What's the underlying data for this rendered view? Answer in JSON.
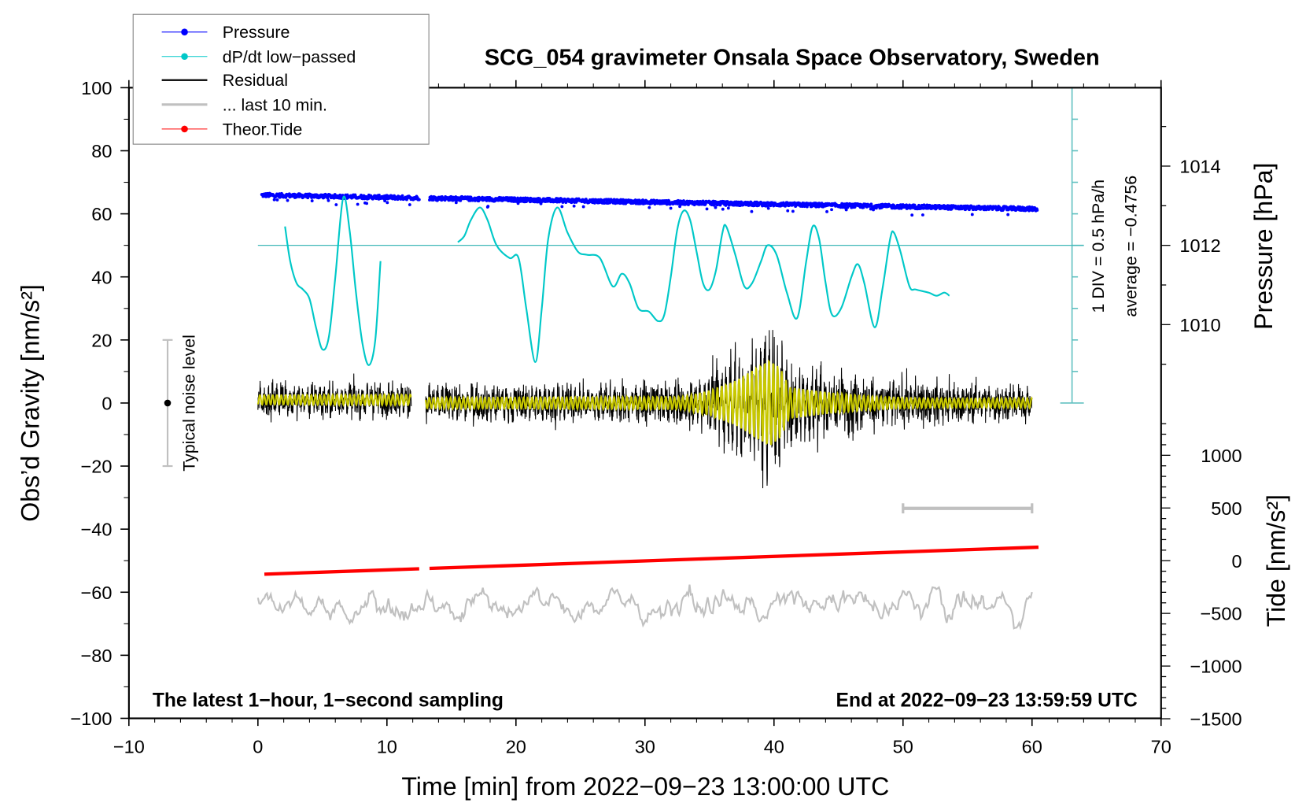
{
  "chart_data": {
    "type": "line",
    "title": "SCG_054 gravimeter Onsala Space Observatory, Sweden",
    "xlabel": "Time [min] from 2022−09−23 13:00:00 UTC",
    "ylabel": "Obs’d Gravity [nm/s²]",
    "y2label": "Pressure [hPa]",
    "y3label": "Tide [nm/s²]",
    "xlim": [
      -10,
      70
    ],
    "ylim": [
      -100,
      100
    ],
    "x_ticks": [
      -10,
      0,
      10,
      20,
      30,
      40,
      50,
      60,
      70
    ],
    "x_tick_labels": [
      "−10",
      "0",
      "10",
      "20",
      "30",
      "40",
      "50",
      "60",
      "70"
    ],
    "y_ticks": [
      -100,
      -80,
      -60,
      -40,
      -20,
      0,
      20,
      40,
      60,
      80,
      100
    ],
    "y_tick_labels": [
      "−100",
      "−80",
      "−60",
      "−40",
      "−20",
      "0",
      "20",
      "40",
      "60",
      "80",
      "100"
    ],
    "pressure_ticks": [
      1010,
      1012,
      1014
    ],
    "pressure_tick_labels": [
      "1010",
      "1012",
      "1014"
    ],
    "tide_ticks": [
      -1500,
      -1000,
      -500,
      0,
      500,
      1000
    ],
    "tide_tick_labels": [
      "−1500",
      "−1000",
      "−500",
      "0",
      "500",
      "1000"
    ],
    "grid": false,
    "legend_position": "top-left",
    "legend": [
      {
        "label": "Pressure",
        "color": "#0000ff",
        "marker": true
      },
      {
        "label": "dP/dt low−passed",
        "color": "#00c8c8",
        "marker": true
      },
      {
        "label": "Residual",
        "color": "#000000",
        "marker": false
      },
      {
        "label": "... last 10 min.",
        "color": "#c0c0c0",
        "marker": false
      },
      {
        "label": "Theor.Tide",
        "color": "#ff0000",
        "marker": true
      }
    ],
    "series": {
      "pressure": {
        "name": "Pressure",
        "unit": "hPa",
        "color": "#0000ff",
        "segments": [
          [
            0.3,
            12.5
          ],
          [
            13.3,
            60.4
          ]
        ],
        "start_value": 1013.27,
        "end_value": 1012.92
      },
      "dpdt": {
        "name": "dP/dt low-passed",
        "color": "#00c8c8",
        "zero_line_gravity": 50,
        "segments": [
          [
            [
              2.1,
              56
            ],
            [
              2.5,
              45
            ],
            [
              3,
              38
            ],
            [
              3.5,
              36
            ],
            [
              4,
              33
            ],
            [
              4.5,
              24
            ],
            [
              5,
              17
            ],
            [
              5.5,
              21
            ],
            [
              6,
              40
            ],
            [
              6.6,
              65
            ],
            [
              7.1,
              55
            ],
            [
              7.6,
              35
            ],
            [
              8.1,
              19
            ],
            [
              8.6,
              12
            ],
            [
              9.1,
              20
            ],
            [
              9.5,
              45
            ]
          ],
          [
            [
              15.5,
              51
            ],
            [
              16,
              53
            ],
            [
              16.5,
              58
            ],
            [
              17.2,
              62
            ],
            [
              17.8,
              58
            ],
            [
              18.5,
              50
            ],
            [
              19.5,
              46
            ],
            [
              20.2,
              46
            ],
            [
              20.8,
              30
            ],
            [
              21.5,
              13
            ],
            [
              22,
              30
            ],
            [
              22.5,
              52
            ],
            [
              23.2,
              62
            ],
            [
              24,
              54
            ],
            [
              24.8,
              48
            ],
            [
              25.5,
              47
            ],
            [
              26.5,
              46
            ],
            [
              27.5,
              37
            ],
            [
              28.2,
              41
            ],
            [
              28.8,
              38
            ],
            [
              29.5,
              30
            ],
            [
              30.3,
              29
            ],
            [
              31,
              26
            ],
            [
              31.5,
              28
            ],
            [
              32,
              40
            ],
            [
              32.5,
              55
            ],
            [
              33,
              61
            ],
            [
              33.5,
              58
            ],
            [
              34,
              48
            ],
            [
              34.5,
              38
            ],
            [
              35,
              36
            ],
            [
              35.5,
              42
            ],
            [
              36,
              54
            ],
            [
              36.3,
              56
            ],
            [
              37,
              47
            ],
            [
              37.7,
              37
            ],
            [
              38.3,
              38
            ],
            [
              39,
              45
            ],
            [
              39.5,
              50
            ],
            [
              40.2,
              47
            ],
            [
              41,
              35
            ],
            [
              41.8,
              27
            ],
            [
              42.5,
              45
            ],
            [
              43,
              56
            ],
            [
              43.5,
              52
            ],
            [
              44,
              38
            ],
            [
              44.5,
              28
            ],
            [
              45.2,
              30
            ],
            [
              46,
              40
            ],
            [
              46.5,
              44
            ],
            [
              47,
              38
            ],
            [
              47.8,
              24
            ],
            [
              48.4,
              36
            ],
            [
              49,
              52
            ],
            [
              49.3,
              54
            ],
            [
              49.8,
              48
            ],
            [
              50.5,
              37
            ],
            [
              51,
              36
            ],
            [
              52,
              35
            ],
            [
              52.6,
              34
            ],
            [
              53.2,
              35
            ],
            [
              53.6,
              34
            ]
          ]
        ]
      },
      "residual": {
        "name": "Residual",
        "color": "#000000",
        "filtered_color": "#c8c800",
        "segments": [
          [
            0,
            11.9
          ],
          [
            13,
            60
          ]
        ],
        "noise_amplitude_by_minute": [
          [
            0,
            3
          ],
          [
            10,
            3
          ],
          [
            20,
            3.2
          ],
          [
            30,
            3.3
          ],
          [
            34,
            4
          ],
          [
            36,
            6
          ],
          [
            38,
            8
          ],
          [
            39.5,
            11
          ],
          [
            40.5,
            10
          ],
          [
            41.5,
            7.5
          ],
          [
            43,
            6.5
          ],
          [
            45,
            5.5
          ],
          [
            47,
            5
          ],
          [
            50,
            4
          ],
          [
            55,
            3.5
          ],
          [
            60,
            3
          ]
        ],
        "filtered_amplitude_by_minute": [
          [
            0,
            1.5
          ],
          [
            20,
            1.8
          ],
          [
            33,
            2
          ],
          [
            35,
            4
          ],
          [
            37,
            7
          ],
          [
            38.5,
            11
          ],
          [
            39.7,
            14
          ],
          [
            40.5,
            11
          ],
          [
            41.2,
            5
          ],
          [
            43,
            4
          ],
          [
            45,
            3
          ],
          [
            48,
            2
          ],
          [
            52,
            1.5
          ],
          [
            60,
            1.5
          ]
        ]
      },
      "last10": {
        "name": "... last 10 min.",
        "color": "#c0c0c0",
        "span_minutes": [
          0,
          60
        ],
        "mean": -64,
        "range": [
          -73,
          -53
        ],
        "bar_range": [
          50,
          60
        ],
        "bar_level": -33.4
      },
      "tide": {
        "name": "Theor.Tide",
        "unit": "nm/s²",
        "color": "#ff0000",
        "segments": [
          [
            0.5,
            12.5
          ],
          [
            13.3,
            60.5
          ]
        ],
        "start_value": -128,
        "end_value": 128
      }
    },
    "noise_level": {
      "label": "Typical noise level",
      "x": -7,
      "range": [
        -20,
        20
      ]
    },
    "dpdt_annotation": {
      "div": "1 DIV = 0.5 hPa/h",
      "average": "average = −0.4756"
    },
    "footer_left": "The latest 1−hour, 1−second sampling",
    "footer_right": "End at 2022−09−23 13:59:59 UTC"
  }
}
